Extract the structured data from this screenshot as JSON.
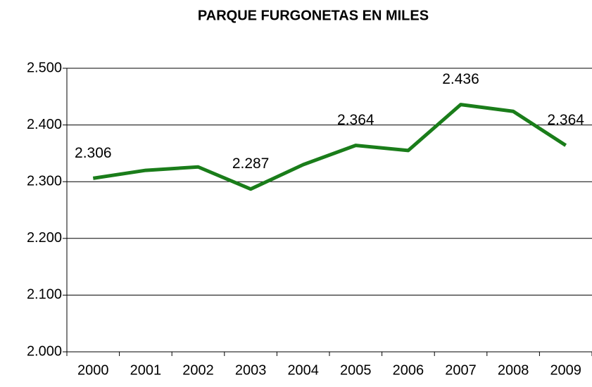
{
  "chart_data": {
    "type": "line",
    "title": "PARQUE FURGONETAS EN MILES",
    "categories": [
      "2000",
      "2001",
      "2002",
      "2003",
      "2004",
      "2005",
      "2006",
      "2007",
      "2008",
      "2009"
    ],
    "series": [
      {
        "name": "Parque furgonetas",
        "color": "#1a7d1a",
        "values": [
          2306,
          2320,
          2326,
          2287,
          2330,
          2364,
          2355,
          2436,
          2424,
          2364
        ],
        "value_labels": [
          "2.306",
          null,
          null,
          "2.287",
          null,
          "2.364",
          null,
          "2.436",
          null,
          "2.364"
        ]
      }
    ],
    "ylim": [
      2000,
      2500
    ],
    "yticks": [
      {
        "value": 2000,
        "label": "2.000"
      },
      {
        "value": 2100,
        "label": "2.100"
      },
      {
        "value": 2200,
        "label": "2.200"
      },
      {
        "value": 2300,
        "label": "2.300"
      },
      {
        "value": 2400,
        "label": "2.400"
      },
      {
        "value": 2500,
        "label": "2.500"
      }
    ],
    "grid": true
  }
}
